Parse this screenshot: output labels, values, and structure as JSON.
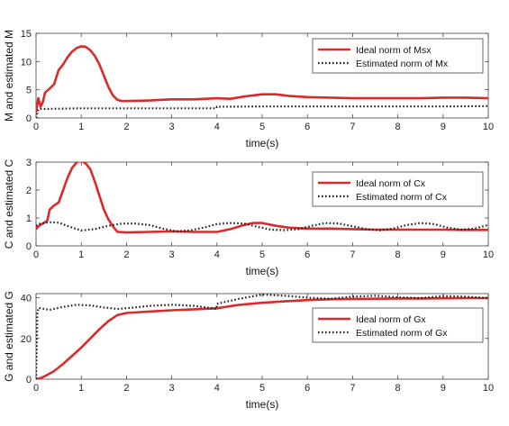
{
  "chart_data": [
    {
      "type": "line",
      "xlabel": "time(s)",
      "ylabel": "M and estimated M",
      "xlim": [
        0,
        10
      ],
      "ylim": [
        0,
        15
      ],
      "xticks": [
        "0",
        "1",
        "2",
        "3",
        "4",
        "5",
        "6",
        "7",
        "8",
        "9",
        "10"
      ],
      "yticks": [
        "0",
        "5",
        "10",
        "15"
      ],
      "legend_position": "top-right",
      "series": [
        {
          "name": "Ideal norm of Msx",
          "color": "#d92b2b",
          "style": "solid",
          "x": [
            0,
            0.05,
            0.1,
            0.15,
            0.2,
            0.3,
            0.4,
            0.5,
            0.6,
            0.7,
            0.8,
            0.9,
            1.0,
            1.1,
            1.2,
            1.3,
            1.4,
            1.5,
            1.6,
            1.7,
            1.8,
            1.9,
            2.0,
            2.5,
            3.0,
            3.5,
            4.0,
            4.3,
            4.6,
            5.0,
            5.3,
            5.6,
            6.0,
            6.5,
            7.0,
            7.5,
            8.0,
            8.5,
            9.0,
            9.5,
            10.0
          ],
          "y": [
            1.0,
            3.5,
            2.0,
            2.8,
            4.5,
            5.2,
            6.0,
            8.5,
            9.5,
            10.8,
            11.8,
            12.4,
            12.7,
            12.6,
            12.0,
            11.0,
            9.5,
            7.5,
            5.5,
            4.0,
            3.2,
            3.0,
            3.0,
            3.1,
            3.3,
            3.3,
            3.5,
            3.4,
            3.8,
            4.2,
            4.2,
            3.9,
            3.7,
            3.6,
            3.5,
            3.5,
            3.5,
            3.5,
            3.6,
            3.6,
            3.5
          ]
        },
        {
          "name": "Estimated norm of Mx",
          "color": "#222222",
          "style": "dotted",
          "x": [
            0,
            0.05,
            0.1,
            1.0,
            2.0,
            3.0,
            3.99,
            4.0,
            5.0,
            6.0,
            7.0,
            8.0,
            9.0,
            10.0
          ],
          "y": [
            0,
            1.5,
            1.6,
            1.7,
            1.7,
            1.7,
            1.7,
            2.0,
            2.05,
            2.05,
            2.05,
            2.05,
            2.05,
            2.1
          ]
        }
      ]
    },
    {
      "type": "line",
      "xlabel": "time(s)",
      "ylabel": "C and estimated C",
      "xlim": [
        0,
        10
      ],
      "ylim": [
        0,
        3
      ],
      "xticks": [
        "0",
        "1",
        "2",
        "3",
        "4",
        "5",
        "6",
        "7",
        "8",
        "9",
        "10"
      ],
      "yticks": [
        "0",
        "1",
        "2",
        "3"
      ],
      "legend_position": "top-right",
      "series": [
        {
          "name": "Ideal norm of Cx",
          "color": "#d92b2b",
          "style": "solid",
          "x": [
            0,
            0.05,
            0.15,
            0.25,
            0.3,
            0.4,
            0.5,
            0.6,
            0.7,
            0.8,
            0.9,
            1.0,
            1.1,
            1.2,
            1.3,
            1.4,
            1.5,
            1.6,
            1.7,
            1.8,
            2.0,
            2.5,
            3.0,
            3.5,
            4.0,
            4.3,
            4.6,
            4.8,
            5.0,
            5.3,
            5.6,
            6.0,
            6.5,
            7.0,
            7.5,
            8.0,
            8.5,
            9.0,
            9.5,
            10.0
          ],
          "y": [
            0.6,
            0.7,
            0.8,
            0.9,
            1.3,
            1.45,
            1.55,
            2.0,
            2.45,
            2.8,
            3.0,
            3.05,
            2.95,
            2.75,
            2.3,
            1.8,
            1.3,
            0.95,
            0.7,
            0.5,
            0.48,
            0.5,
            0.52,
            0.5,
            0.5,
            0.6,
            0.75,
            0.82,
            0.82,
            0.72,
            0.65,
            0.62,
            0.62,
            0.6,
            0.58,
            0.58,
            0.58,
            0.58,
            0.57,
            0.57
          ]
        },
        {
          "name": "Estimated norm of Cx",
          "color": "#222222",
          "style": "dotted",
          "x": [
            0,
            0.1,
            0.3,
            0.5,
            0.8,
            1.0,
            1.3,
            1.6,
            1.9,
            2.2,
            2.5,
            2.8,
            3.1,
            3.4,
            3.7,
            4.0,
            4.3,
            4.6,
            4.9,
            5.2,
            5.5,
            5.8,
            6.1,
            6.4,
            6.7,
            7.0,
            7.3,
            7.6,
            7.9,
            8.2,
            8.5,
            8.8,
            9.1,
            9.4,
            9.7,
            10.0
          ],
          "y": [
            0.72,
            0.8,
            0.85,
            0.83,
            0.65,
            0.55,
            0.6,
            0.72,
            0.8,
            0.8,
            0.75,
            0.62,
            0.52,
            0.55,
            0.65,
            0.78,
            0.82,
            0.8,
            0.68,
            0.58,
            0.56,
            0.6,
            0.72,
            0.82,
            0.8,
            0.7,
            0.6,
            0.56,
            0.62,
            0.75,
            0.82,
            0.78,
            0.65,
            0.58,
            0.62,
            0.75
          ]
        }
      ]
    },
    {
      "type": "line",
      "xlabel": "time(s)",
      "ylabel": "G and estimated G",
      "xlim": [
        0,
        10
      ],
      "ylim": [
        0,
        42
      ],
      "xticks": [
        "0",
        "1",
        "2",
        "3",
        "4",
        "5",
        "6",
        "7",
        "8",
        "9",
        "10"
      ],
      "yticks": [
        "0",
        "20",
        "40"
      ],
      "legend_position": "top-right",
      "series": [
        {
          "name": "Ideal norm of Gx",
          "color": "#d92b2b",
          "style": "solid",
          "x": [
            0,
            0.1,
            0.2,
            0.4,
            0.6,
            0.8,
            1.0,
            1.2,
            1.4,
            1.6,
            1.8,
            2.0,
            2.5,
            3.0,
            3.5,
            4.0,
            4.5,
            5.0,
            5.5,
            6.0,
            6.5,
            7.0,
            7.5,
            8.0,
            8.5,
            9.0,
            9.5,
            10.0
          ],
          "y": [
            0,
            0.5,
            1.5,
            4,
            7.5,
            11.5,
            15.5,
            20,
            24.5,
            28.5,
            31.5,
            32.5,
            33.2,
            33.8,
            34.3,
            34.8,
            36.5,
            37.5,
            38.2,
            38.8,
            39.2,
            39.4,
            39.5,
            39.6,
            39.6,
            39.7,
            39.8,
            39.8
          ]
        },
        {
          "name": "Estimated norm of Gx",
          "color": "#222222",
          "style": "dotted",
          "x": [
            0,
            0.03,
            0.06,
            0.3,
            0.6,
            0.9,
            1.2,
            1.5,
            1.8,
            2.1,
            2.5,
            3.0,
            3.5,
            3.99,
            4.0,
            4.5,
            5.0,
            5.5,
            6.0,
            6.5,
            7.0,
            7.5,
            8.0,
            8.5,
            9.0,
            9.5,
            10.0
          ],
          "y": [
            0,
            33,
            35,
            34,
            35.5,
            36.5,
            36.2,
            35.2,
            34.5,
            35,
            36,
            36.5,
            36,
            34.5,
            37,
            39.5,
            41.5,
            41,
            40,
            39.5,
            40.5,
            41,
            40.2,
            39.8,
            40.8,
            40.5,
            39.8
          ]
        }
      ]
    }
  ]
}
